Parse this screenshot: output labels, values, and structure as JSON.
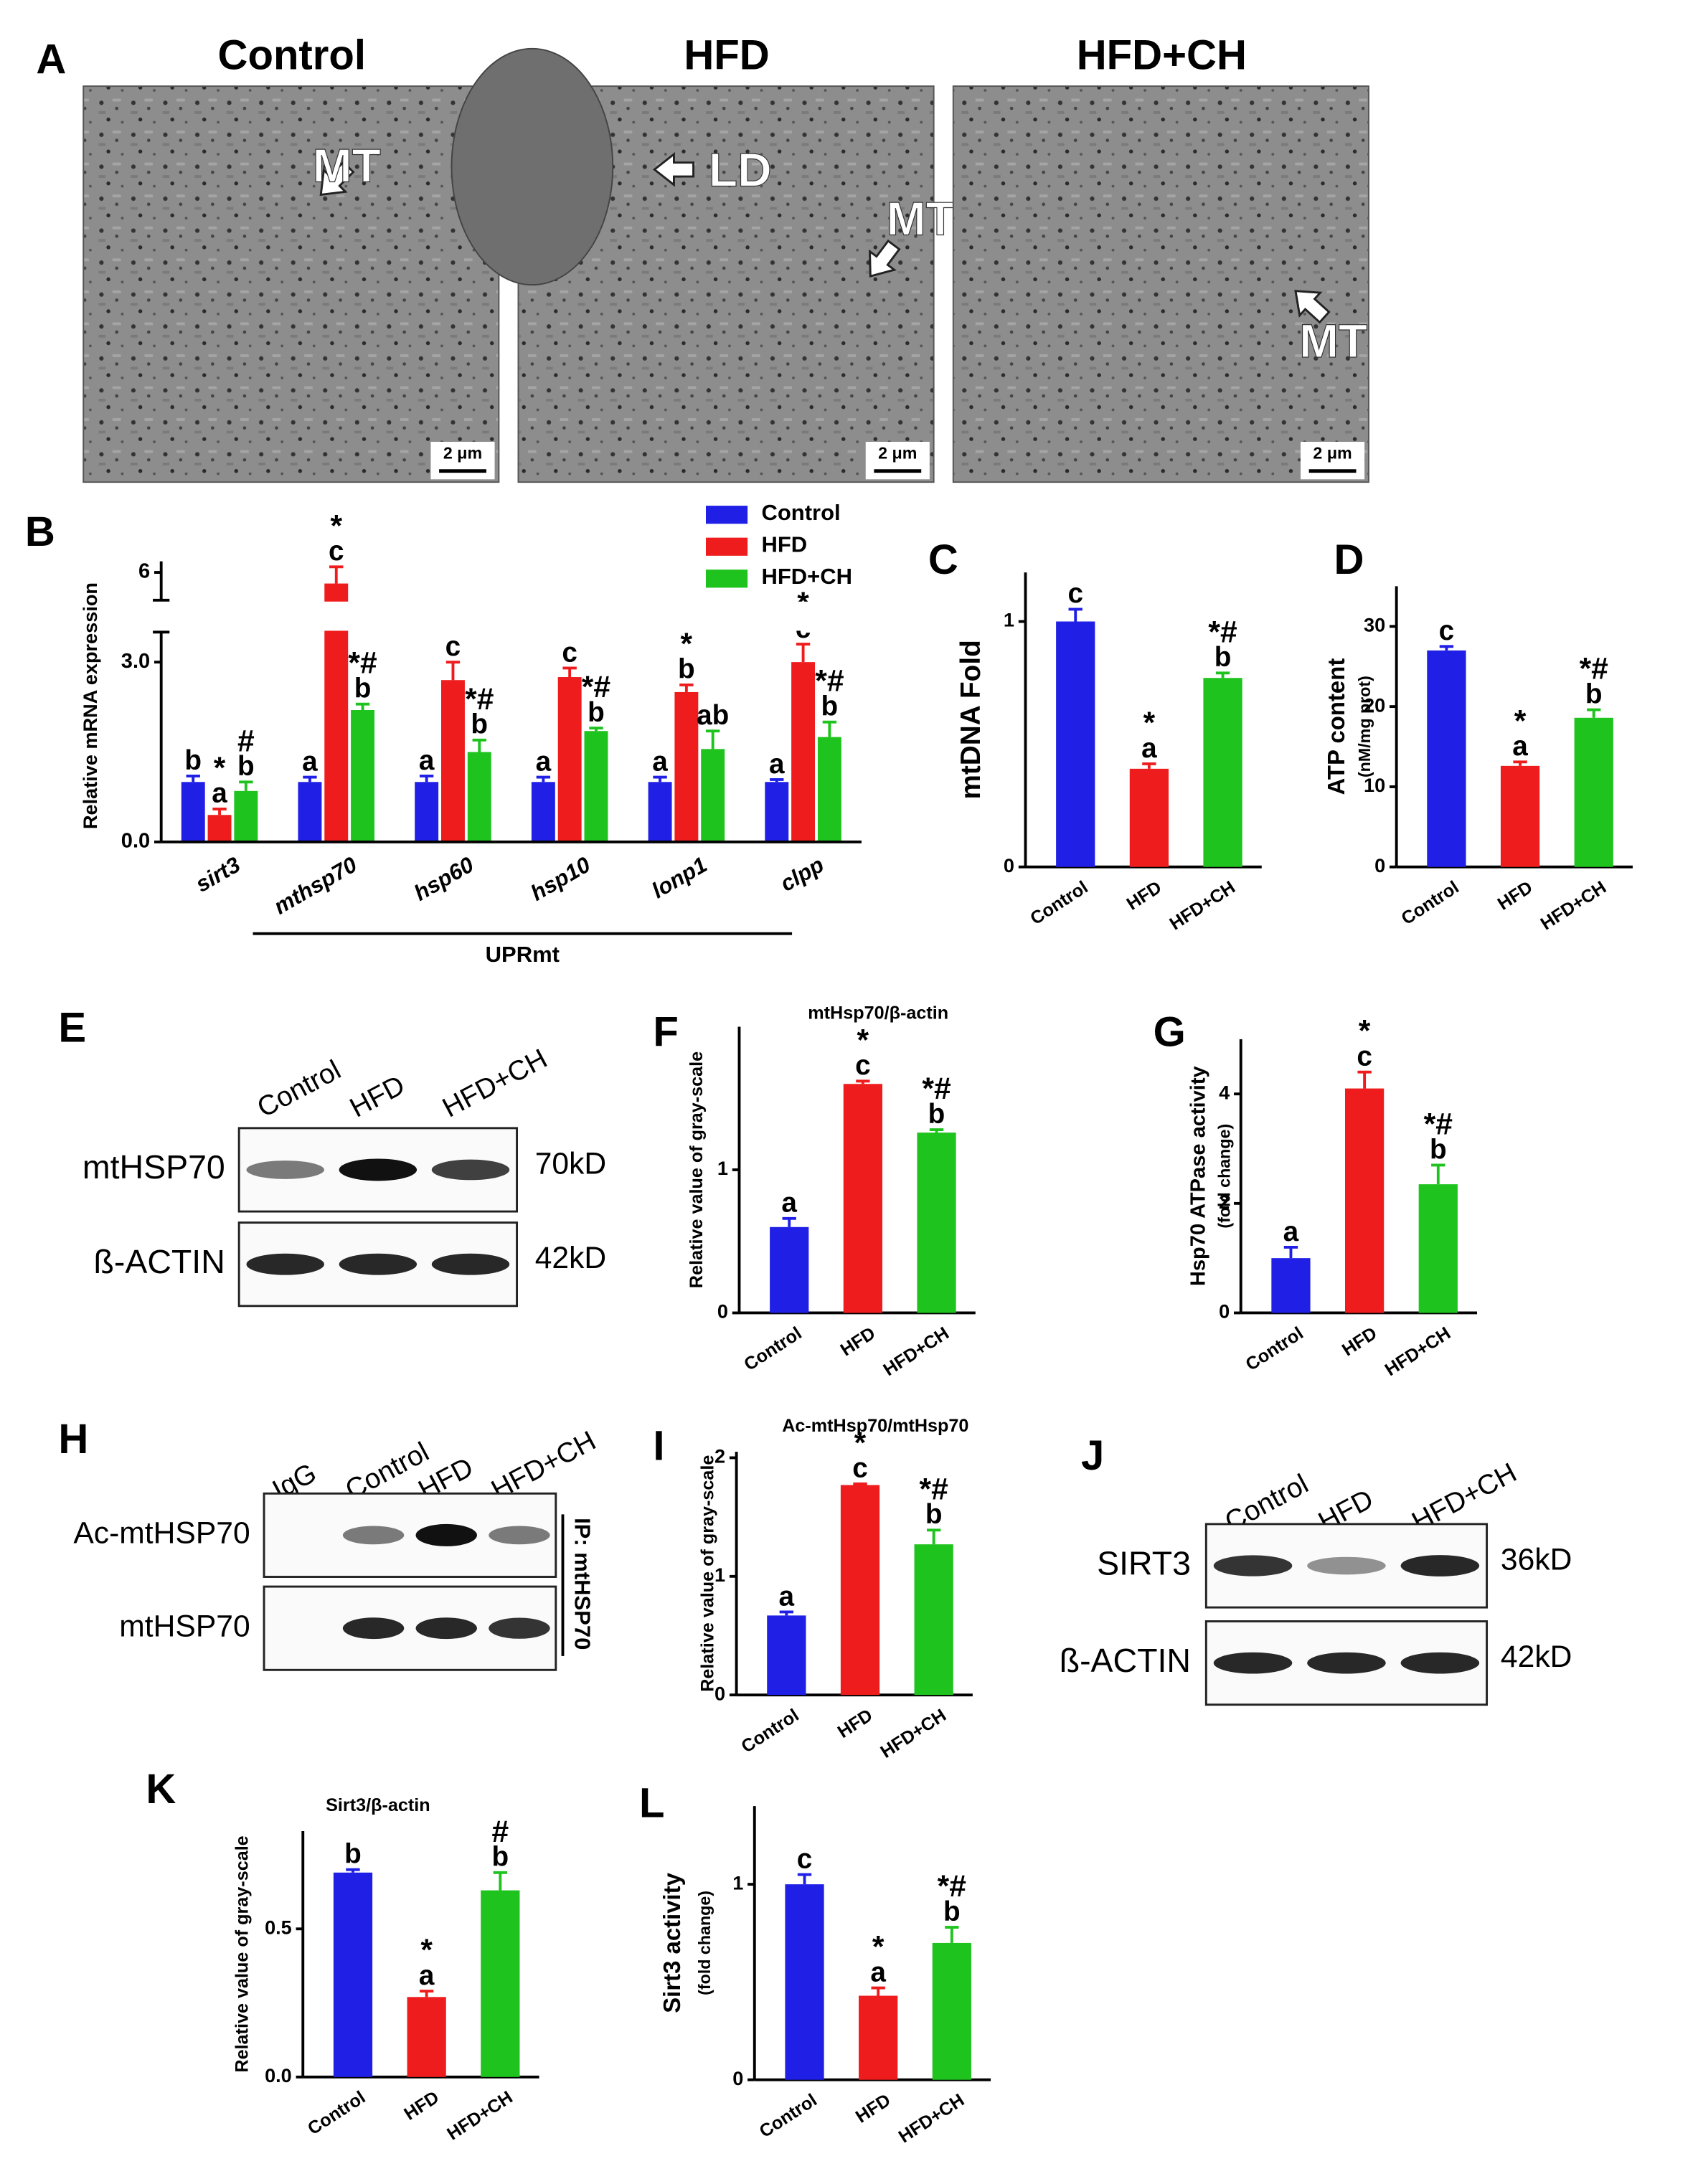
{
  "micrographs": {
    "panel": "A",
    "images": [
      {
        "title": "Control",
        "labels": [
          "MT"
        ],
        "scale_bar": "2 μm"
      },
      {
        "title": "HFD",
        "labels": [
          "LD",
          "MT"
        ],
        "scale_bar": "2 μm"
      },
      {
        "title": "HFD+CH",
        "labels": [
          "MT"
        ],
        "scale_bar": "2 μm"
      }
    ]
  },
  "blots": [
    {
      "panel": "E",
      "lanes": [
        "Control",
        "HFD",
        "HFD+CH"
      ],
      "rows": [
        {
          "label": "mtHSP70",
          "size": "70kD"
        },
        {
          "label": "ß-ACTIN",
          "size": "42kD"
        }
      ]
    },
    {
      "panel": "H",
      "lanes": [
        "IgG",
        "Control",
        "HFD",
        "HFD+CH"
      ],
      "rows": [
        {
          "label": "Ac-mtHSP70"
        },
        {
          "label": "mtHSP70"
        }
      ],
      "side_label": "IP: mtHSP70"
    },
    {
      "panel": "J",
      "lanes": [
        "Control",
        "HFD",
        "HFD+CH"
      ],
      "rows": [
        {
          "label": "SIRT3",
          "size": "36kD"
        },
        {
          "label": "ß-ACTIN",
          "size": "42kD"
        }
      ]
    }
  ],
  "chart_data": [
    {
      "type": "bar",
      "panel": "B",
      "ylabel": "Relative mRNA expression",
      "categories": [
        "sirt3",
        "mthsp70",
        "hsp60",
        "hsp10",
        "lonp1",
        "clpp"
      ],
      "series": [
        {
          "name": "Control",
          "color": "#1f1fe6",
          "values": [
            1,
            1,
            1,
            1,
            1,
            1
          ],
          "errors": [
            0.1,
            0.08,
            0.1,
            0.08,
            0.08,
            0.04
          ],
          "annotations": [
            [
              "b"
            ],
            [
              "a"
            ],
            [
              "a"
            ],
            [
              "a"
            ],
            [
              "a"
            ],
            [
              "a"
            ]
          ]
        },
        {
          "name": "HFD",
          "color": "#ee1c1c",
          "values": [
            0.45,
            5.8,
            2.7,
            2.75,
            2.5,
            3.0
          ],
          "errors": [
            0.1,
            0.3,
            0.3,
            0.15,
            0.12,
            0.3
          ],
          "annotations": [
            [
              "*",
              "a"
            ],
            [
              "*",
              "c"
            ],
            [
              "*",
              "c"
            ],
            [
              "*",
              "c"
            ],
            [
              "*",
              "b"
            ],
            [
              "*",
              "c"
            ]
          ]
        },
        {
          "name": "HFD+CH",
          "color": "#1ec31e",
          "values": [
            0.85,
            2.2,
            1.5,
            1.85,
            1.55,
            1.75
          ],
          "errors": [
            0.15,
            0.1,
            0.2,
            0.05,
            0.3,
            0.25
          ],
          "annotations": [
            [
              "#",
              "b"
            ],
            [
              "*#",
              "b"
            ],
            [
              "*#",
              "b"
            ],
            [
              "*#",
              "b"
            ],
            [
              "ab"
            ],
            [
              "*#",
              "b"
            ]
          ]
        }
      ],
      "ylim": [
        0,
        6.2
      ],
      "y_break": [
        3.5,
        5.5
      ],
      "yticks": [
        {
          "value": 0,
          "label": "0.0"
        },
        {
          "value": 3,
          "label": "3.0"
        },
        6
      ],
      "bracket": "UPRmt"
    },
    {
      "type": "bar",
      "panel": "C",
      "ylabel": "mtDNA Fold",
      "categories": [
        "Control",
        "HFD",
        "HFD+CH"
      ],
      "colors": [
        "#1f1fe6",
        "#ee1c1c",
        "#1ec31e"
      ],
      "values": [
        1.0,
        0.4,
        0.77
      ],
      "errors": [
        0.05,
        0.02,
        0.02
      ],
      "annotations": [
        [
          "c"
        ],
        [
          "*",
          "a"
        ],
        [
          "*#",
          "b"
        ]
      ],
      "ylim": [
        0,
        1.2
      ],
      "yticks": [
        0,
        1
      ]
    },
    {
      "type": "bar",
      "panel": "D",
      "ylabel": "ATP content",
      "ylabel_sub": "(nM/mg prot)",
      "categories": [
        "Control",
        "HFD",
        "HFD+CH"
      ],
      "colors": [
        "#1f1fe6",
        "#ee1c1c",
        "#1ec31e"
      ],
      "values": [
        27,
        12.6,
        18.6
      ],
      "errors": [
        0.5,
        0.5,
        1.0
      ],
      "annotations": [
        [
          "c"
        ],
        [
          "*",
          "a"
        ],
        [
          "*#",
          "b"
        ]
      ],
      "ylim": [
        0,
        35
      ],
      "yticks": [
        0,
        10,
        20,
        30
      ]
    },
    {
      "type": "bar",
      "panel": "F",
      "title": "mtHsp70/β-actin",
      "ylabel": "Relative value of gray-scale",
      "categories": [
        "Control",
        "HFD",
        "HFD+CH"
      ],
      "colors": [
        "#1f1fe6",
        "#ee1c1c",
        "#1ec31e"
      ],
      "values": [
        0.6,
        1.6,
        1.26
      ],
      "errors": [
        0.06,
        0.02,
        0.02
      ],
      "annotations": [
        [
          "a"
        ],
        [
          "*",
          "c"
        ],
        [
          "*#",
          "b"
        ]
      ],
      "ylim": [
        0,
        2
      ],
      "yticks": [
        0,
        1
      ]
    },
    {
      "type": "bar",
      "panel": "G",
      "ylabel": "Hsp70 ATPase activity",
      "ylabel_sub": "(fold change)",
      "categories": [
        "Control",
        "HFD",
        "HFD+CH"
      ],
      "colors": [
        "#1f1fe6",
        "#ee1c1c",
        "#1ec31e"
      ],
      "values": [
        1.0,
        4.1,
        2.35
      ],
      "errors": [
        0.2,
        0.3,
        0.35
      ],
      "annotations": [
        [
          "a"
        ],
        [
          "*",
          "c"
        ],
        [
          "*#",
          "b"
        ]
      ],
      "ylim": [
        0,
        5
      ],
      "yticks": [
        0,
        2,
        4
      ]
    },
    {
      "type": "bar",
      "panel": "I",
      "title": "Ac-mtHsp70/mtHsp70",
      "ylabel": "Relative value of gray-scale",
      "categories": [
        "Control",
        "HFD",
        "HFD+CH"
      ],
      "colors": [
        "#1f1fe6",
        "#ee1c1c",
        "#1ec31e"
      ],
      "values": [
        0.67,
        1.77,
        1.27
      ],
      "errors": [
        0.03,
        0.01,
        0.12
      ],
      "annotations": [
        [
          "a"
        ],
        [
          "*",
          "c"
        ],
        [
          "*#",
          "b"
        ]
      ],
      "ylim": [
        0,
        2.05
      ],
      "yticks": [
        0,
        1,
        2
      ]
    },
    {
      "type": "bar",
      "panel": "K",
      "title": "Sirt3/β-actin",
      "ylabel": "Relative value of gray-scale",
      "categories": [
        "Control",
        "HFD",
        "HFD+CH"
      ],
      "colors": [
        "#1f1fe6",
        "#ee1c1c",
        "#1ec31e"
      ],
      "values": [
        0.69,
        0.27,
        0.63
      ],
      "errors": [
        0.01,
        0.02,
        0.06
      ],
      "annotations": [
        [
          "b"
        ],
        [
          "*",
          "a"
        ],
        [
          "#",
          "b"
        ]
      ],
      "ylim": [
        0,
        0.83
      ],
      "yticks": [
        {
          "value": 0,
          "label": "0.0"
        },
        0.5
      ]
    },
    {
      "type": "bar",
      "panel": "L",
      "ylabel": "Sirt3 activity",
      "ylabel_sub": "(fold change)",
      "categories": [
        "Control",
        "HFD",
        "HFD+CH"
      ],
      "colors": [
        "#1f1fe6",
        "#ee1c1c",
        "#1ec31e"
      ],
      "values": [
        1.0,
        0.43,
        0.7
      ],
      "errors": [
        0.05,
        0.04,
        0.08
      ],
      "annotations": [
        [
          "c"
        ],
        [
          "*",
          "a"
        ],
        [
          "*#",
          "b"
        ]
      ],
      "ylim": [
        0,
        1.4
      ],
      "yticks": [
        0,
        1
      ]
    }
  ]
}
